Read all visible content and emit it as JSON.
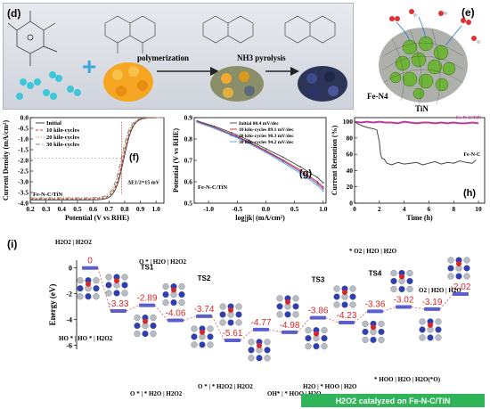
{
  "panel_d": {
    "label": "(d)",
    "step1": "polymerization",
    "step2": "NH3 pyrolysis"
  },
  "panel_e": {
    "label": "(e)",
    "label_fen4": "Fe-N4",
    "label_tin": "TiN"
  },
  "chart_data": [
    {
      "id": "f",
      "type": "line",
      "panel_label": "(f)",
      "xlabel": "Potential (V vs RHE)",
      "ylabel": "Current Density (mA/cm²)",
      "xlim": [
        0.2,
        1.05
      ],
      "ylim": [
        -4.0,
        0.0
      ],
      "x_ticks": [
        "0.2",
        "0.3",
        "0.4",
        "0.5",
        "0.6",
        "0.7",
        "0.8",
        "0.9",
        "1.0"
      ],
      "y_ticks": [
        "0.0",
        "-0.5",
        "-1.0",
        "-1.5",
        "-2.0",
        "-2.5",
        "-3.0",
        "-3.5",
        "-4.0"
      ],
      "legend": [
        "Initial",
        "10 kilo-cycles",
        "20 kilo-cycles",
        "30 kilo-cycles"
      ],
      "annotation": "ΔE1/2=15 mV",
      "sample": "Fe-N-C/TiN",
      "series": [
        {
          "name": "Initial",
          "e_half": 0.795,
          "limit": -3.85,
          "color": "#444444",
          "dash": ""
        },
        {
          "name": "10 kilo-cycles",
          "e_half": 0.79,
          "limit": -3.8,
          "color": "#c0392b",
          "dash": "3,2"
        },
        {
          "name": "20 kilo-cycles",
          "e_half": 0.785,
          "limit": -3.78,
          "color": "#e67e22",
          "dash": "1,2"
        },
        {
          "name": "30 kilo-cycles",
          "e_half": 0.78,
          "limit": -3.75,
          "color": "#7f8c8d",
          "dash": "5,2,1,2"
        }
      ]
    },
    {
      "id": "g",
      "type": "line",
      "panel_label": "(g)",
      "xlabel": "log|jk| (mA/cm²)",
      "ylabel": "Potential (V vs RHE)",
      "xlim": [
        -1.25,
        1.05
      ],
      "ylim": [
        0.5,
        0.9
      ],
      "x_ticks": [
        "-1.0",
        "-0.5",
        "0.0",
        "0.5",
        "1.0"
      ],
      "y_ticks": [
        "0.9",
        "0.8",
        "0.7",
        "0.6",
        "0.5"
      ],
      "legend": [
        "Initial 80.4 mV/dec",
        "10 kilo-cycles 89.1 mV/dec",
        "20 kilo-cycles 90.3 mV/dec",
        "30 kilo-cycles 94.2 mV/dec"
      ],
      "sample": "Fe-N-C/TiN",
      "series": [
        {
          "name": "Initial",
          "x": [
            -1.2,
            -0.9,
            -0.6,
            -0.3,
            0.0,
            0.3,
            0.6,
            0.9,
            1.0
          ],
          "y": [
            0.885,
            0.86,
            0.83,
            0.795,
            0.755,
            0.715,
            0.67,
            0.62,
            0.595
          ],
          "color": "#555555"
        },
        {
          "name": "10 kilo-cycles",
          "x": [
            -1.2,
            -0.9,
            -0.6,
            -0.3,
            0.0,
            0.3,
            0.6,
            0.9,
            1.0
          ],
          "y": [
            0.882,
            0.855,
            0.823,
            0.788,
            0.746,
            0.702,
            0.655,
            0.6,
            0.575
          ],
          "color": "#c0392b"
        },
        {
          "name": "20 kilo-cycles",
          "x": [
            -1.2,
            -0.9,
            -0.6,
            -0.3,
            0.0,
            0.3,
            0.6,
            0.9,
            1.0
          ],
          "y": [
            0.88,
            0.852,
            0.82,
            0.784,
            0.742,
            0.697,
            0.648,
            0.592,
            0.567
          ],
          "color": "#8e44ad"
        },
        {
          "name": "30 kilo-cycles",
          "x": [
            -1.2,
            -0.9,
            -0.6,
            -0.3,
            0.0,
            0.3,
            0.6,
            0.9,
            1.0
          ],
          "y": [
            0.878,
            0.85,
            0.817,
            0.78,
            0.737,
            0.69,
            0.64,
            0.583,
            0.557
          ],
          "color": "#5dade2"
        }
      ]
    },
    {
      "id": "h",
      "type": "line",
      "panel_label": "(h)",
      "xlabel": "Time (h)",
      "ylabel": "Current Retention (%)",
      "xlim": [
        0,
        10.5
      ],
      "ylim": [
        0,
        105
      ],
      "x_ticks": [
        "0",
        "2",
        "4",
        "6",
        "8",
        "10"
      ],
      "y_ticks": [
        "100",
        "80",
        "60",
        "40",
        "20",
        "0"
      ],
      "series": [
        {
          "name": "Fe-N-C/TiN",
          "color": "#c0399b",
          "x": [
            0,
            0.5,
            1,
            1.5,
            2,
            2.5,
            3,
            3.5,
            4,
            4.5,
            5,
            5.5,
            6,
            6.5,
            7,
            7.5,
            8,
            8.5,
            9,
            9.5,
            10
          ],
          "y": [
            100,
            99,
            100,
            99,
            100,
            99,
            99,
            98,
            100,
            99,
            98,
            99,
            99,
            98,
            99,
            98,
            99,
            98,
            98,
            99,
            98
          ]
        },
        {
          "name": "Fe-N-C",
          "color": "#444444",
          "x": [
            0,
            0.3,
            0.6,
            1.0,
            1.3,
            1.6,
            1.8,
            2.0,
            2.1,
            2.2,
            2.4,
            2.6,
            3.0,
            3.5,
            4.0,
            4.5,
            5.0,
            5.5,
            6.0,
            6.5,
            7.0,
            7.5,
            8.0,
            8.5,
            9.0,
            9.5,
            9.8
          ],
          "y": [
            100,
            97,
            95,
            93,
            92,
            91,
            90,
            75,
            60,
            55,
            54,
            49,
            47,
            50,
            48,
            49,
            50,
            47,
            49,
            51,
            48,
            50,
            49,
            52,
            50,
            49,
            53
          ]
        }
      ]
    },
    {
      "id": "i",
      "type": "line",
      "panel_label": "(i)",
      "ylabel": "Energy (eV)",
      "y_ticks": [
        "0",
        "-2",
        "-4",
        "-6"
      ],
      "ylim": [
        -6.3,
        0.6
      ],
      "levels": [
        0,
        -3.33,
        -2.89,
        -4.06,
        -3.74,
        -5.61,
        -4.77,
        -4.98,
        -3.86,
        -4.23,
        -3.36,
        -3.02,
        -3.19,
        -2.02
      ],
      "level_labels": [
        "0",
        "-3.33",
        "-2.89",
        "-4.06",
        "-3.74",
        "-5.61",
        "-4.77",
        "-4.98",
        "-3.86",
        "-4.23",
        "-3.36",
        "-3.02",
        "-3.19",
        "-2.02"
      ],
      "ts_labels": [
        "TS1",
        "TS2",
        "TS3",
        "TS4"
      ],
      "state_labels": [
        "H2O2 | H2O2",
        "HO * | HO * | H2O2",
        "O * | H2O | H2O2",
        "O * | * H2O | H2O2",
        "O * | * H2O2 | H2O2",
        "OH* | * HOO | H2O",
        "H2O | * HOO | H2O",
        "* O2 | H2O | H2O",
        "O2 | H2O | H2O",
        "* HOO | H2O | H2O(*O)"
      ],
      "caption": "H2O2 catalyzed on Fe-N-C/TiN"
    }
  ],
  "colors": {
    "panel_d_bg": "#dcdfe6",
    "panel_i_bg": "#ffffff",
    "level_bar": "#5b5ed1",
    "level_text": "#d62728",
    "caption_bg": "#2fb45a",
    "caption_fg": "#ffffff"
  }
}
